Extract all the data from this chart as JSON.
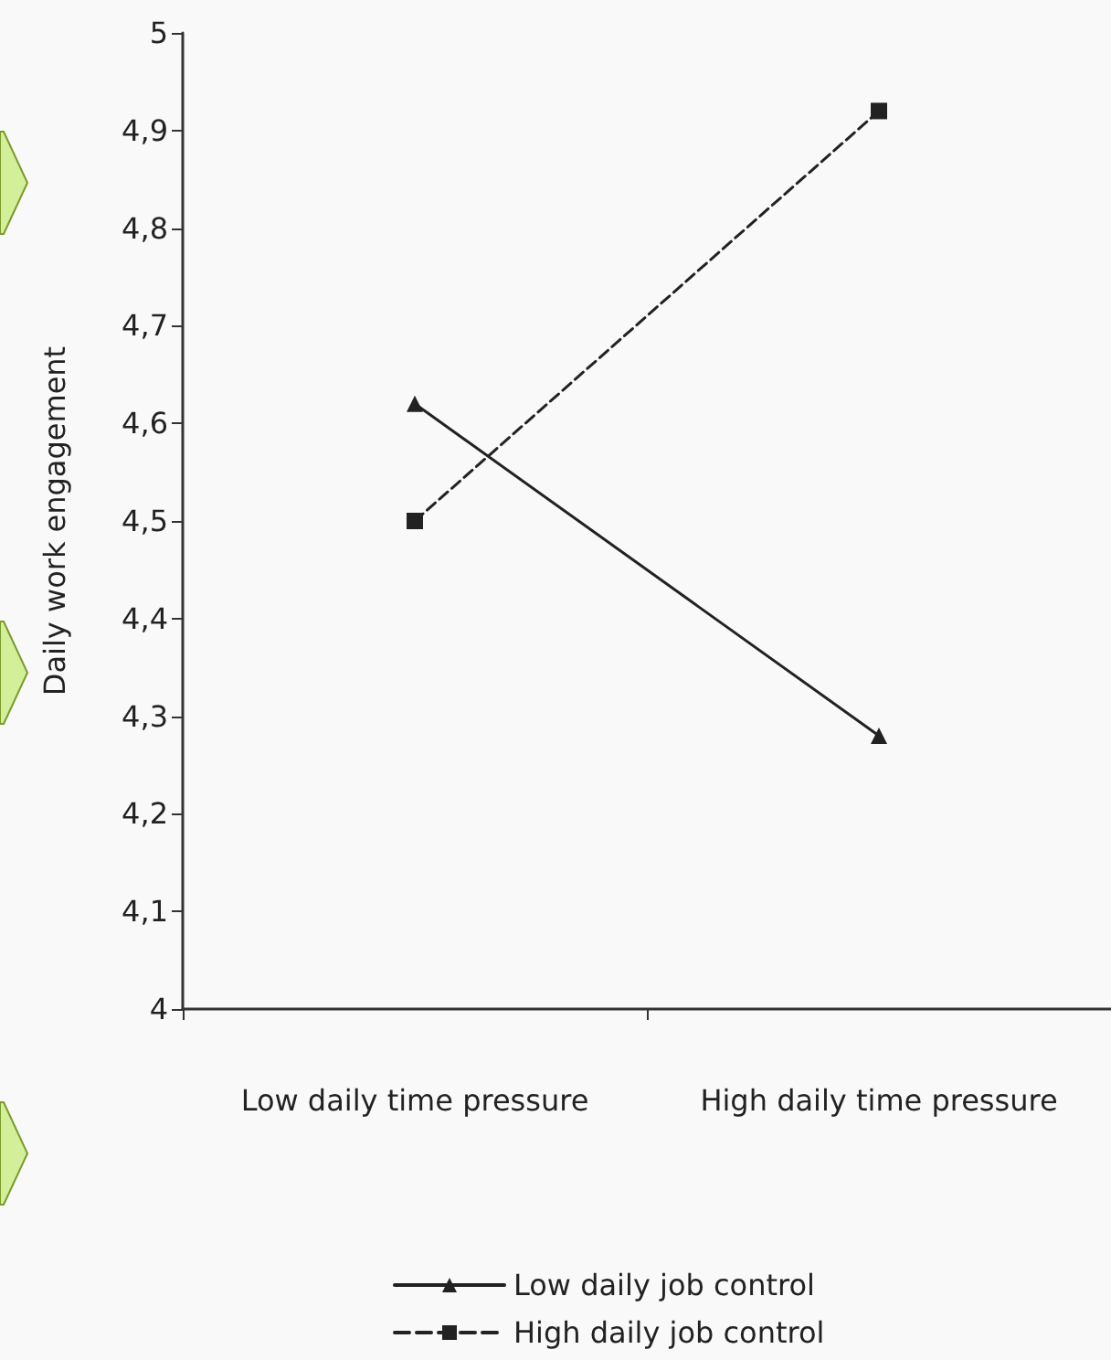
{
  "chart_data": {
    "type": "line",
    "ylabel": "Daily work engagement",
    "categories": [
      "Low daily time pressure",
      "High daily time pressure"
    ],
    "series": [
      {
        "name": "Low daily job control",
        "color": "#222222",
        "values": [
          4.62,
          4.28
        ],
        "marker": "triangle",
        "line_style": "solid"
      },
      {
        "name": "High daily job control",
        "color": "#222222",
        "values": [
          4.5,
          4.92
        ],
        "marker": "square",
        "line_style": "dashed"
      }
    ],
    "ylim": [
      4,
      5
    ],
    "yticks": [
      4,
      {
        "value": 4.1,
        "label": "4,1"
      },
      {
        "value": 4.2,
        "label": "4,2"
      },
      {
        "value": 4.3,
        "label": "4,3"
      },
      {
        "value": 4.4,
        "label": "4,4"
      },
      {
        "value": 4.5,
        "label": "4,5"
      },
      {
        "value": 4.6,
        "label": "4,6"
      },
      {
        "value": 4.7,
        "label": "4,7"
      },
      {
        "value": 4.8,
        "label": "4,8"
      },
      {
        "value": 4.9,
        "label": "4,9"
      },
      5
    ],
    "grid": false,
    "legend": "bottom"
  }
}
